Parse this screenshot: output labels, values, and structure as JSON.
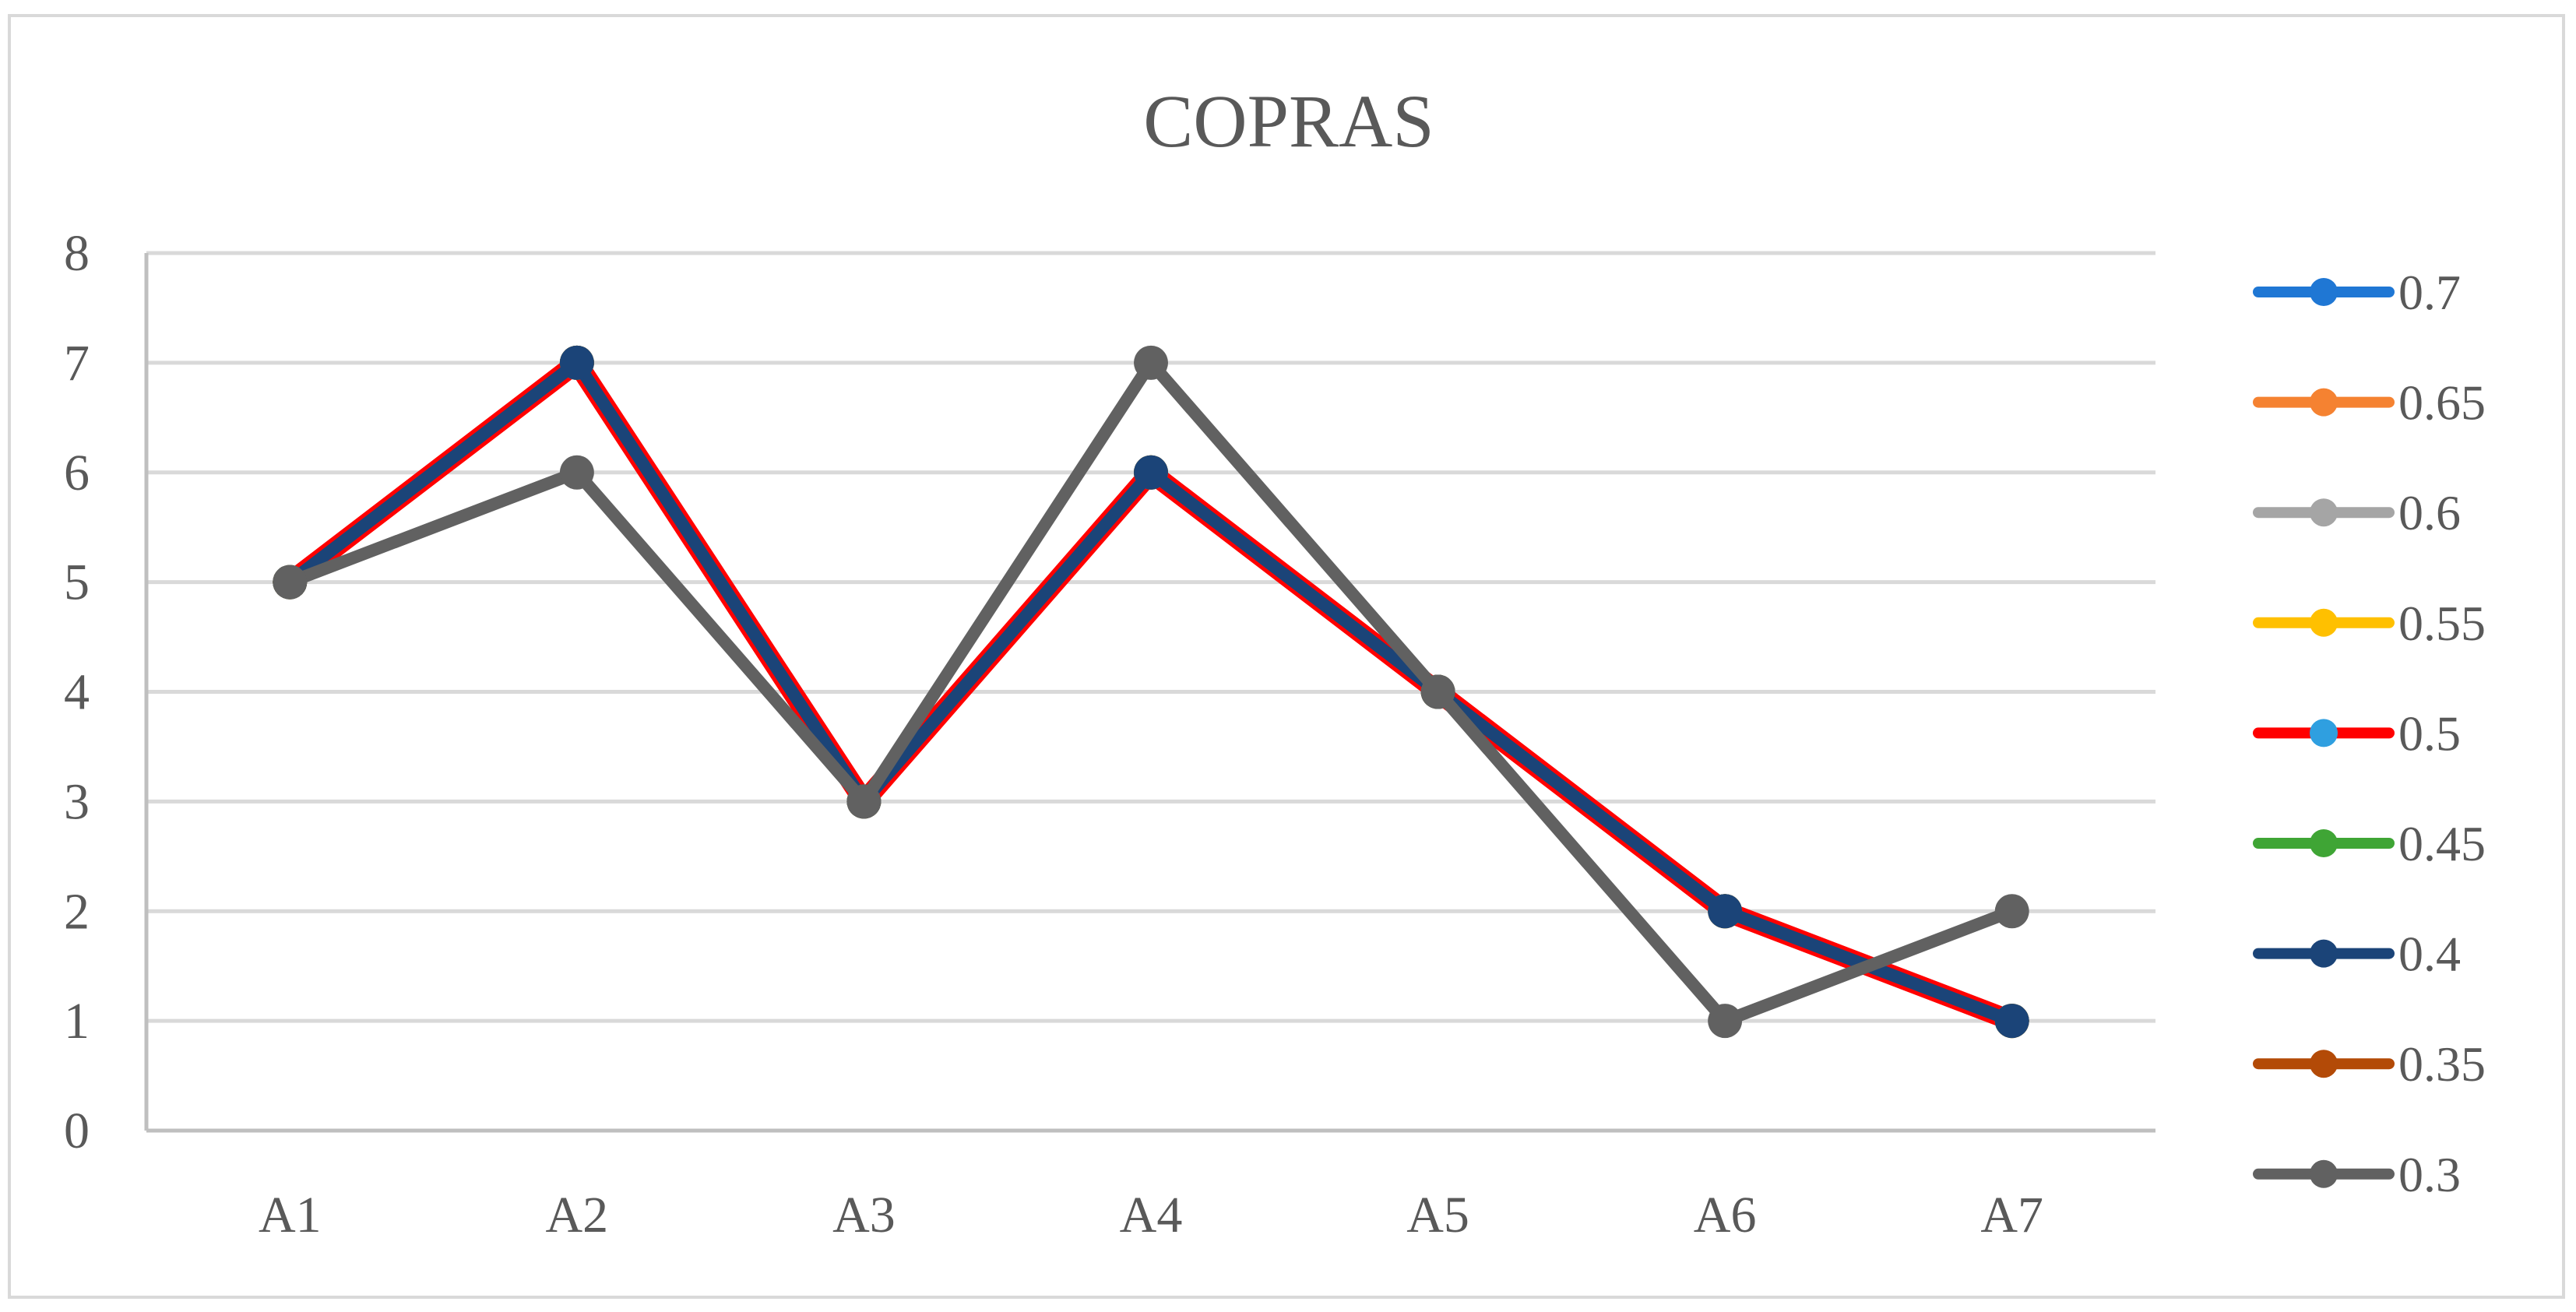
{
  "chart_data": {
    "type": "line",
    "title": "COPRAS",
    "xlabel": "",
    "ylabel": "",
    "categories": [
      "A1",
      "A2",
      "A3",
      "A4",
      "A5",
      "A6",
      "A7"
    ],
    "ylim": [
      0,
      8
    ],
    "yticks": [
      "0",
      "1",
      "2",
      "3",
      "4",
      "5",
      "6",
      "7",
      "8"
    ],
    "grid": true,
    "legend_position": "right",
    "series": [
      {
        "name": "0.7",
        "color": "#1f77d4",
        "values": [
          5,
          7,
          3,
          6,
          4,
          2,
          1
        ]
      },
      {
        "name": "0.65",
        "color": "#f58231",
        "values": [
          5,
          7,
          3,
          6,
          4,
          2,
          1
        ]
      },
      {
        "name": "0.6",
        "color": "#a5a5a5",
        "values": [
          5,
          7,
          3,
          6,
          4,
          2,
          1
        ]
      },
      {
        "name": "0.55",
        "color": "#ffc000",
        "values": [
          5,
          7,
          3,
          6,
          4,
          2,
          1
        ]
      },
      {
        "name": "0.5",
        "color": "#ff0000",
        "marker_color": "#2f9fe0",
        "values": [
          5,
          7,
          3,
          6,
          4,
          2,
          1
        ]
      },
      {
        "name": "0.45",
        "color": "#3fa535",
        "values": [
          5,
          7,
          3,
          6,
          4,
          2,
          1
        ]
      },
      {
        "name": "0.4",
        "color": "#1b4478",
        "values": [
          5,
          7,
          3,
          6,
          4,
          2,
          1
        ]
      },
      {
        "name": "0.35",
        "color": "#b34a07",
        "values": [
          5,
          7,
          3,
          6,
          4,
          2,
          1
        ]
      },
      {
        "name": "0.3",
        "color": "#616161",
        "values": [
          5,
          6,
          3,
          7,
          4,
          1,
          2
        ]
      }
    ]
  }
}
